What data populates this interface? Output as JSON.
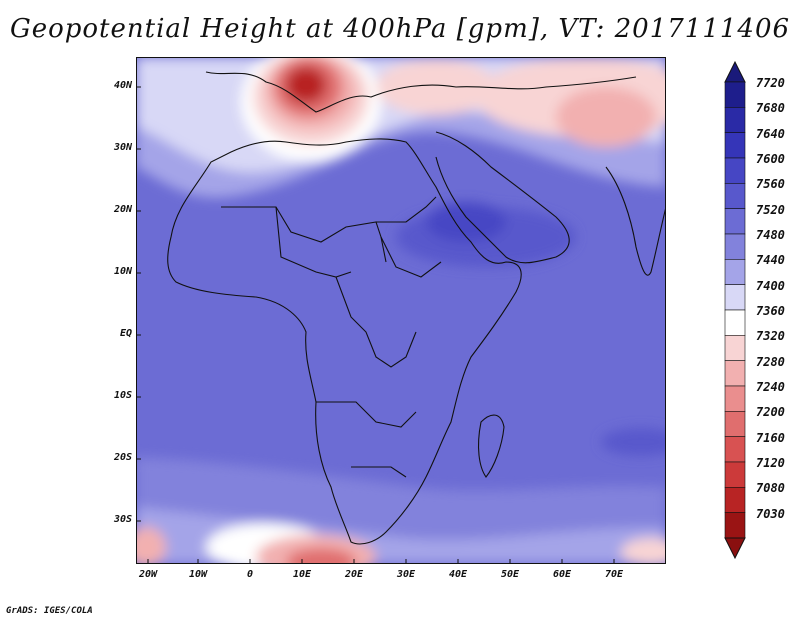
{
  "title": "Geopotential Height at 400hPa [gpm], VT: 2017111406",
  "lat_labels": [
    "40N",
    "30N",
    "20N",
    "10N",
    "EQ",
    "10S",
    "20S",
    "30S"
  ],
  "lon_labels": [
    "20W",
    "10W",
    "0",
    "10E",
    "20E",
    "30E",
    "40E",
    "50E",
    "60E",
    "70E"
  ],
  "colorbar": {
    "labels": [
      "7720",
      "7680",
      "7640",
      "7600",
      "7560",
      "7520",
      "7480",
      "7440",
      "7400",
      "7360",
      "7320",
      "7280",
      "7240",
      "7200",
      "7160",
      "7120",
      "7080",
      "7030"
    ],
    "colors": [
      "#1e1e8c",
      "#2a2aa6",
      "#3535b8",
      "#4646c4",
      "#5858cc",
      "#6c6cd4",
      "#8282dc",
      "#a4a4e8",
      "#d8d8f6",
      "#ffffff",
      "#f8d4d4",
      "#f2b0b0",
      "#ea8e8e",
      "#e06e6e",
      "#d85252",
      "#cc3a3a",
      "#b82424",
      "#9a1414"
    ],
    "top_color": "#1a1a7a",
    "bottom_color": "#8a1010"
  },
  "credit": "GrADS: IGES/COLA"
}
